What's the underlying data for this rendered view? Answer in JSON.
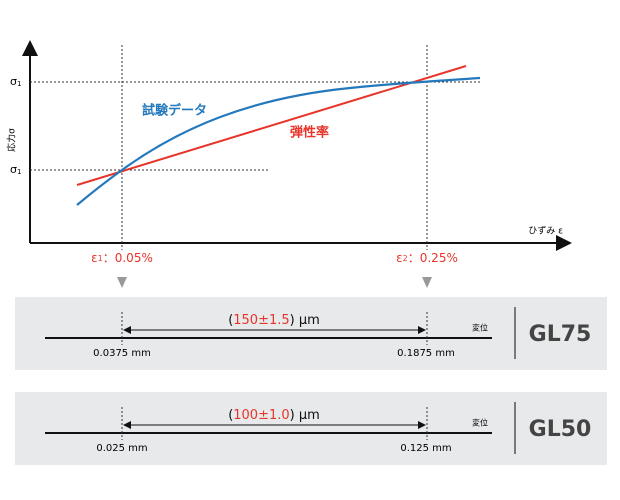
{
  "graph": {
    "y_axis_label": "応力σ",
    "x_axis_label": "ひずみ ε",
    "y_marks": [
      {
        "symbol": "σ",
        "sub": "1"
      },
      {
        "symbol": "σ",
        "sub": "1"
      }
    ],
    "curve_label": "試験データ",
    "line_label": "弾性率",
    "strain_points": [
      {
        "symbol": "ε",
        "sub": "1",
        "value": "：0.05%"
      },
      {
        "symbol": "ε",
        "sub": "2",
        "value": "：0.25%"
      }
    ]
  },
  "panels": [
    {
      "open": "(",
      "dimension": "150±1.5",
      "close": ") μm",
      "axis_label": "変位",
      "left": "0.0375 mm",
      "right": "0.1875 mm",
      "gauge": "GL75"
    },
    {
      "open": "(",
      "dimension": "100±1.0",
      "close": ") μm",
      "axis_label": "変位",
      "left": "0.025 mm",
      "right": "0.125 mm",
      "gauge": "GL50"
    }
  ]
}
